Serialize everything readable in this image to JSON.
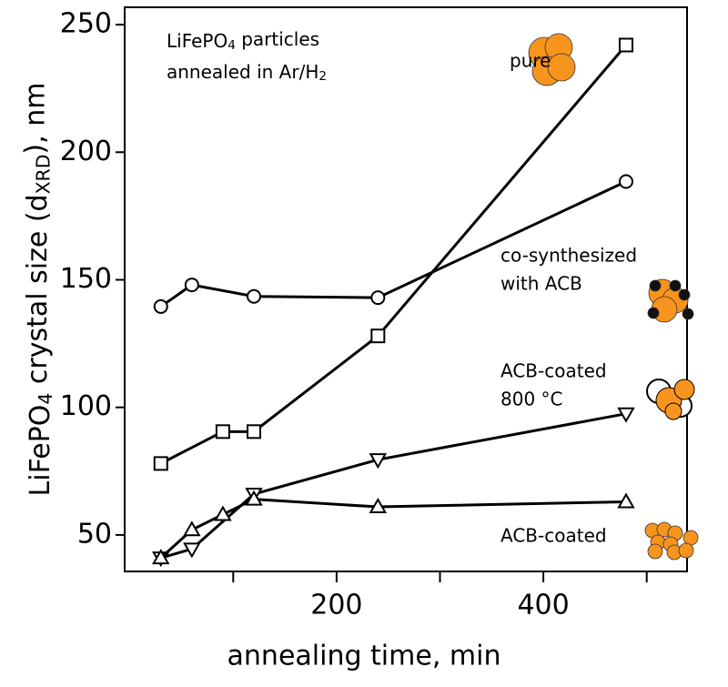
{
  "chart_data": {
    "type": "line",
    "annotation": [
      [
        "LiFePO",
        "4",
        " particles"
      ],
      [
        "annealed in Ar/H",
        "2"
      ]
    ],
    "xlabel": "annealing time, min",
    "ylabel": [
      "LiFePO",
      "4",
      " crystal size (d",
      "XRD",
      "), nm"
    ],
    "xlim": [
      -5,
      539
    ],
    "ylim": [
      35.7,
      256.8
    ],
    "xticks": [
      200,
      400
    ],
    "xminor_ticks": [
      100,
      300,
      500
    ],
    "yticks": [
      50,
      100,
      150,
      200,
      250
    ],
    "series": [
      {
        "name": [
          "pure"
        ],
        "marker": "square",
        "color": "#000000",
        "x": [
          30,
          90,
          120,
          240,
          480
        ],
        "values": [
          78,
          90.5,
          90.5,
          128,
          242
        ]
      },
      {
        "name": [
          "co-synthesized",
          "with ACB"
        ],
        "marker": "circle",
        "color": "#000000",
        "x": [
          30,
          60,
          120,
          240,
          480
        ],
        "values": [
          139.5,
          148,
          143.5,
          143,
          188.5
        ]
      },
      {
        "name": [
          "ACB-coated",
          "800 °C"
        ],
        "marker": "triangle-down",
        "color": "#000000",
        "x": [
          30,
          60,
          120,
          240,
          480
        ],
        "values": [
          41,
          44.5,
          66,
          79.5,
          97.5
        ]
      },
      {
        "name": [
          "ACB-coated"
        ],
        "marker": "triangle-up",
        "color": "#000000",
        "x": [
          30,
          60,
          90,
          120,
          240,
          480
        ],
        "values": [
          41,
          52,
          58,
          64,
          61,
          63
        ]
      }
    ]
  }
}
